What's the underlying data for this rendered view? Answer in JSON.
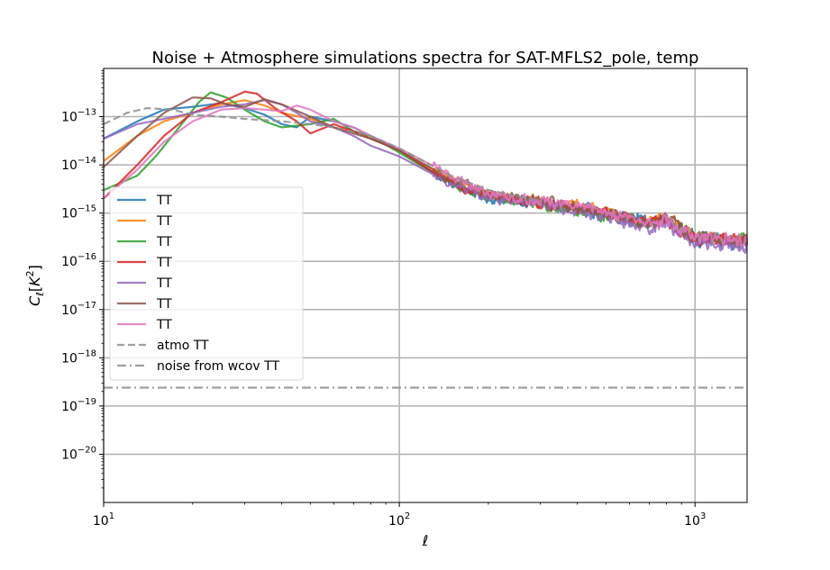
{
  "chart_data": {
    "type": "line",
    "title": "Noise + Atmosphere simulations spectra for SAT-MFLS2_pole, temp",
    "xlabel": "ℓ",
    "ylabel": "C_ℓ[K^2]",
    "xscale": "log",
    "yscale": "log",
    "xlim": [
      10,
      1500
    ],
    "ylim": [
      1e-21,
      1e-12
    ],
    "grid": "major",
    "legend_position": "center-left",
    "x_ticks": [
      {
        "value": 10,
        "base": "10",
        "exp": "1"
      },
      {
        "value": 100,
        "base": "10",
        "exp": "2"
      },
      {
        "value": 1000,
        "base": "10",
        "exp": "3"
      }
    ],
    "y_ticks": [
      {
        "value": 1e-20,
        "base": "10",
        "exp": "−20"
      },
      {
        "value": 1e-19,
        "base": "10",
        "exp": "−19"
      },
      {
        "value": 1e-18,
        "base": "10",
        "exp": "−18"
      },
      {
        "value": 1e-17,
        "base": "10",
        "exp": "−17"
      },
      {
        "value": 1e-16,
        "base": "10",
        "exp": "−16"
      },
      {
        "value": 1e-15,
        "base": "10",
        "exp": "−15"
      },
      {
        "value": 1e-14,
        "base": "10",
        "exp": "−14"
      },
      {
        "value": 1e-13,
        "base": "10",
        "exp": "−13"
      }
    ],
    "series": [
      {
        "name": "TT",
        "color": "#1f77b4",
        "style": "solid",
        "points": [
          [
            10,
            3.5e-14
          ],
          [
            13,
            8e-14
          ],
          [
            16,
            1.4e-13
          ],
          [
            20,
            1.6e-13
          ],
          [
            25,
            1.9e-13
          ],
          [
            30,
            1.5e-13
          ],
          [
            35,
            1.1e-13
          ],
          [
            40,
            7e-14
          ],
          [
            45,
            6e-14
          ],
          [
            50,
            1e-13
          ],
          [
            60,
            8e-14
          ],
          [
            70,
            6e-14
          ],
          [
            80,
            4e-14
          ],
          [
            100,
            2e-14
          ],
          [
            150,
            4e-15
          ],
          [
            200,
            2e-15
          ],
          [
            300,
            1.6e-15
          ],
          [
            500,
            1e-15
          ],
          [
            700,
            7e-16
          ],
          [
            800,
            7e-16
          ],
          [
            1000,
            3e-16
          ],
          [
            1500,
            2.5e-16
          ]
        ]
      },
      {
        "name": "TT",
        "color": "#ff7f0e",
        "style": "solid",
        "points": [
          [
            10,
            1.2e-14
          ],
          [
            13,
            4e-14
          ],
          [
            16,
            8e-14
          ],
          [
            20,
            1.2e-13
          ],
          [
            25,
            1.8e-13
          ],
          [
            30,
            2.2e-13
          ],
          [
            35,
            1.7e-13
          ],
          [
            40,
            1.2e-13
          ],
          [
            50,
            9e-14
          ],
          [
            60,
            6e-14
          ],
          [
            70,
            5e-14
          ],
          [
            80,
            3.5e-14
          ],
          [
            100,
            2e-14
          ],
          [
            150,
            5e-15
          ],
          [
            200,
            2.5e-15
          ],
          [
            300,
            1.8e-15
          ],
          [
            500,
            1.1e-15
          ],
          [
            700,
            6e-16
          ],
          [
            800,
            8e-16
          ],
          [
            1000,
            3e-16
          ],
          [
            1500,
            2.8e-16
          ]
        ]
      },
      {
        "name": "TT",
        "color": "#2ca02c",
        "style": "solid",
        "points": [
          [
            10,
            3e-15
          ],
          [
            13,
            6e-15
          ],
          [
            15,
            1.5e-14
          ],
          [
            18,
            6e-14
          ],
          [
            21,
            2e-13
          ],
          [
            23,
            3.2e-13
          ],
          [
            26,
            2.5e-13
          ],
          [
            30,
            1.4e-13
          ],
          [
            35,
            8e-14
          ],
          [
            40,
            6e-14
          ],
          [
            50,
            7e-14
          ],
          [
            60,
            9e-14
          ],
          [
            70,
            5e-14
          ],
          [
            80,
            4e-14
          ],
          [
            100,
            1.8e-14
          ],
          [
            150,
            4e-15
          ],
          [
            200,
            2e-15
          ],
          [
            300,
            1.5e-15
          ],
          [
            500,
            9e-16
          ],
          [
            700,
            6e-16
          ],
          [
            800,
            7e-16
          ],
          [
            1000,
            3e-16
          ],
          [
            1500,
            2.5e-16
          ]
        ]
      },
      {
        "name": "TT",
        "color": "#d62728",
        "style": "solid",
        "points": [
          [
            10,
            2e-15
          ],
          [
            13,
            1e-14
          ],
          [
            16,
            4e-14
          ],
          [
            20,
            1.2e-13
          ],
          [
            25,
            2e-13
          ],
          [
            30,
            3.3e-13
          ],
          [
            33,
            3e-13
          ],
          [
            38,
            1.5e-13
          ],
          [
            45,
            8e-14
          ],
          [
            50,
            4.5e-14
          ],
          [
            60,
            7e-14
          ],
          [
            70,
            5e-14
          ],
          [
            80,
            3.5e-14
          ],
          [
            100,
            2e-14
          ],
          [
            150,
            4e-15
          ],
          [
            200,
            2.2e-15
          ],
          [
            300,
            1.6e-15
          ],
          [
            500,
            1e-15
          ],
          [
            700,
            6e-16
          ],
          [
            800,
            7e-16
          ],
          [
            1000,
            3e-16
          ],
          [
            1500,
            2.5e-16
          ]
        ]
      },
      {
        "name": "TT",
        "color": "#9467bd",
        "style": "solid",
        "points": [
          [
            10,
            3.5e-14
          ],
          [
            13,
            7e-14
          ],
          [
            16,
            9e-14
          ],
          [
            20,
            1.2e-13
          ],
          [
            25,
            1.6e-13
          ],
          [
            30,
            1.8e-13
          ],
          [
            35,
            2.2e-13
          ],
          [
            40,
            1.8e-13
          ],
          [
            45,
            1.2e-13
          ],
          [
            50,
            8e-14
          ],
          [
            60,
            6e-14
          ],
          [
            70,
            4e-14
          ],
          [
            80,
            2.5e-14
          ],
          [
            100,
            1.5e-14
          ],
          [
            150,
            4e-15
          ],
          [
            200,
            2e-15
          ],
          [
            300,
            1.5e-15
          ],
          [
            500,
            8e-16
          ],
          [
            700,
            5e-16
          ],
          [
            800,
            6e-16
          ],
          [
            1000,
            2.5e-16
          ],
          [
            1500,
            2e-16
          ]
        ]
      },
      {
        "name": "TT",
        "color": "#8c564b",
        "style": "solid",
        "points": [
          [
            10,
            9e-15
          ],
          [
            13,
            4e-14
          ],
          [
            16,
            1.2e-13
          ],
          [
            20,
            2.5e-13
          ],
          [
            23,
            2.4e-13
          ],
          [
            26,
            1.8e-13
          ],
          [
            30,
            1.6e-13
          ],
          [
            35,
            2.3e-13
          ],
          [
            40,
            1.8e-13
          ],
          [
            50,
            1e-13
          ],
          [
            60,
            6e-14
          ],
          [
            70,
            4.5e-14
          ],
          [
            80,
            3.5e-14
          ],
          [
            100,
            2e-14
          ],
          [
            150,
            5e-15
          ],
          [
            200,
            2.5e-15
          ],
          [
            300,
            1.8e-15
          ],
          [
            500,
            1e-15
          ],
          [
            700,
            6e-16
          ],
          [
            800,
            8e-16
          ],
          [
            1000,
            3e-16
          ],
          [
            1500,
            2.8e-16
          ]
        ]
      },
      {
        "name": "TT",
        "color": "#e377c2",
        "style": "solid",
        "points": [
          [
            10,
            2e-15
          ],
          [
            13,
            8e-15
          ],
          [
            16,
            3e-14
          ],
          [
            20,
            8e-14
          ],
          [
            25,
            1.4e-13
          ],
          [
            30,
            1.5e-13
          ],
          [
            35,
            1.4e-13
          ],
          [
            40,
            1.3e-13
          ],
          [
            45,
            1.7e-13
          ],
          [
            50,
            1.4e-13
          ],
          [
            60,
            8e-14
          ],
          [
            70,
            6e-14
          ],
          [
            80,
            4e-14
          ],
          [
            100,
            2.2e-14
          ],
          [
            150,
            6e-15
          ],
          [
            200,
            2.5e-15
          ],
          [
            300,
            1.8e-15
          ],
          [
            500,
            1.1e-15
          ],
          [
            700,
            6e-16
          ],
          [
            800,
            7e-16
          ],
          [
            1000,
            3e-16
          ],
          [
            1500,
            2.7e-16
          ]
        ]
      },
      {
        "name": "atmo TT",
        "color": "#8f8f8f",
        "style": "dashed",
        "points": [
          [
            10,
            7e-14
          ],
          [
            12,
            1.2e-13
          ],
          [
            14,
            1.5e-13
          ],
          [
            17,
            1.4e-13
          ],
          [
            20,
            1.1e-13
          ],
          [
            25,
            1e-13
          ],
          [
            30,
            9e-14
          ],
          [
            40,
            8e-14
          ],
          [
            50,
            7e-14
          ],
          [
            60,
            6e-14
          ],
          [
            80,
            4e-14
          ],
          [
            100,
            2.2e-14
          ],
          [
            150,
            6e-15
          ],
          [
            200,
            3e-15
          ],
          [
            300,
            1.8e-15
          ]
        ]
      },
      {
        "name": "noise from wcov TT",
        "color": "#8f8f8f",
        "style": "dashdot",
        "points": [
          [
            10,
            2.4e-19
          ],
          [
            1500,
            2.4e-19
          ]
        ]
      }
    ]
  }
}
